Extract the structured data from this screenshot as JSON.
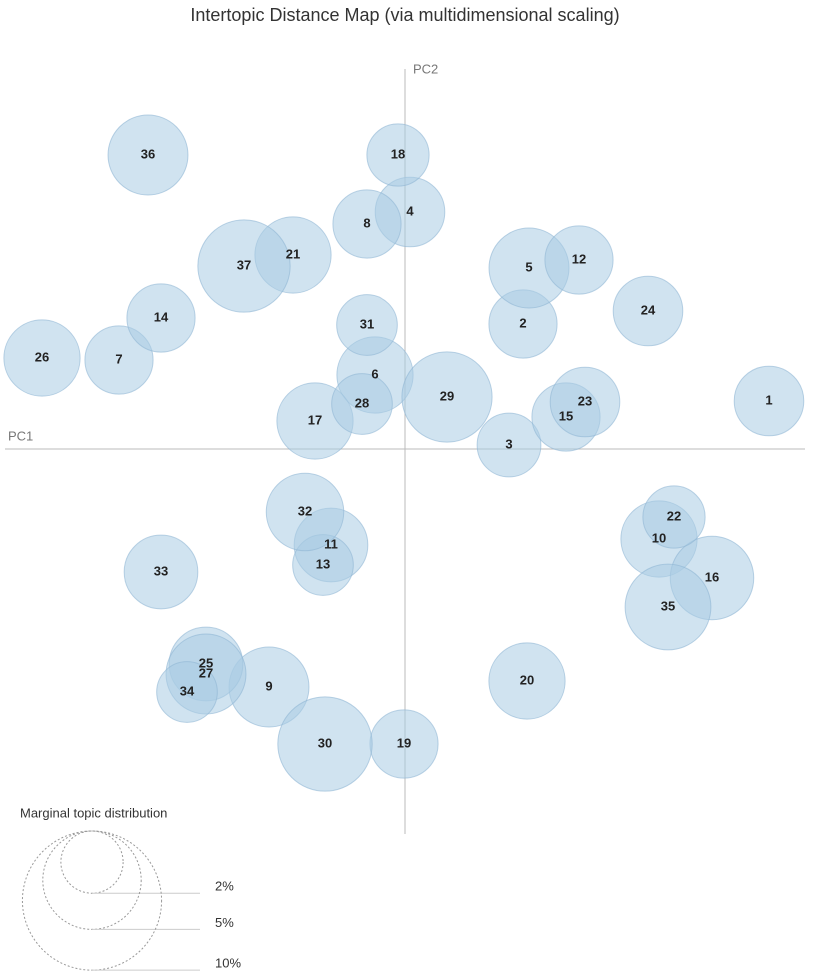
{
  "chart_data": {
    "type": "bubble",
    "title": "Intertopic Distance Map (via multidimensional scaling)",
    "xlabel": "PC1",
    "ylabel": "PC2",
    "topics": [
      "1",
      "2",
      "3",
      "4",
      "5",
      "6",
      "7",
      "8",
      "9",
      "10",
      "11",
      "12",
      "13",
      "14",
      "15",
      "16",
      "17",
      "18",
      "19",
      "20",
      "21",
      "22",
      "23",
      "24",
      "25",
      "26",
      "27",
      "28",
      "29",
      "30",
      "31",
      "32",
      "33",
      "34",
      "35",
      "36",
      "37"
    ],
    "x": [
      3.64,
      1.18,
      1.04,
      0.05,
      1.24,
      -0.3,
      -2.86,
      -0.38,
      -1.36,
      2.54,
      -0.74,
      1.74,
      -0.82,
      -2.44,
      1.61,
      3.07,
      -0.9,
      -0.07,
      -0.01,
      1.22,
      -1.12,
      2.69,
      1.8,
      2.43,
      -1.99,
      -3.63,
      -1.99,
      -0.43,
      0.42,
      -0.8,
      -0.38,
      -1.0,
      -2.44,
      -2.18,
      2.63,
      -2.57,
      -1.61
    ],
    "y": [
      0.48,
      1.25,
      0.04,
      2.37,
      1.81,
      0.74,
      0.89,
      2.25,
      -2.38,
      -0.9,
      -0.96,
      1.89,
      -1.16,
      1.31,
      0.32,
      -1.29,
      0.28,
      2.94,
      -2.95,
      -2.32,
      1.94,
      -0.68,
      0.47,
      1.38,
      -2.15,
      0.91,
      -2.25,
      0.45,
      0.52,
      -2.95,
      1.24,
      -0.63,
      -1.23,
      -2.43,
      -1.58,
      2.94,
      1.83
    ],
    "sizes": [
      2.5,
      2.4,
      2.1,
      2.5,
      3.3,
      3.0,
      2.4,
      2.4,
      3.3,
      3.0,
      2.8,
      2.4,
      1.9,
      2.4,
      2.4,
      3.6,
      3.0,
      2.0,
      2.4,
      3.0,
      3.0,
      2.0,
      2.5,
      2.5,
      2.8,
      3.0,
      3.3,
      1.9,
      4.2,
      4.6,
      1.9,
      3.1,
      2.8,
      1.9,
      3.8,
      3.3,
      4.4
    ],
    "color": "#a9cce4",
    "xlim": [
      -4,
      4
    ],
    "ylim": [
      -3.85,
      3.8
    ],
    "legend_title": "Marginal topic distribution",
    "legend_sizes": [
      {
        "value": 2,
        "label": "2%"
      },
      {
        "value": 5,
        "label": "5%"
      },
      {
        "value": 10,
        "label": "10%"
      }
    ]
  }
}
